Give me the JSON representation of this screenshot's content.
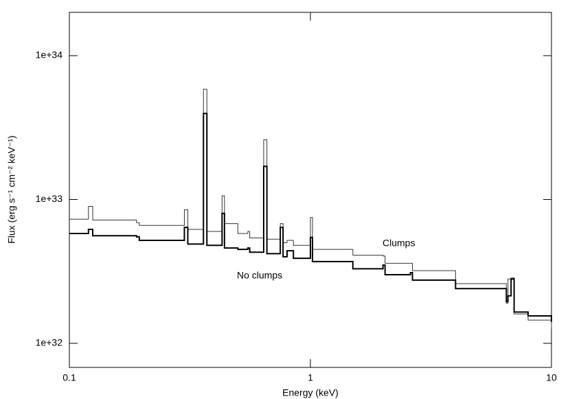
{
  "chart_data": {
    "type": "step",
    "x_label": "Energy (keV)",
    "y_label": "Flux (erg s⁻¹ cm⁻² keV⁻¹)",
    "x_log": true,
    "y_log": true,
    "xlim": [
      0.1,
      10
    ],
    "xticks": [
      0.1,
      1,
      10
    ],
    "ylim": [
      6.8e+31,
      2e+34
    ],
    "yticks": [
      {
        "value": 1e+32,
        "label": "1e+32"
      },
      {
        "value": 1e+33,
        "label": "1e+33"
      },
      {
        "value": 1e+34,
        "label": "1e+34"
      }
    ],
    "x": [
      0.1,
      0.12,
      0.125,
      0.19,
      0.195,
      0.3,
      0.31,
      0.36,
      0.372,
      0.43,
      0.44,
      0.5,
      0.55,
      0.56,
      0.64,
      0.66,
      0.75,
      0.77,
      0.8,
      0.85,
      1.0,
      1.02,
      1.5,
      2.0,
      2.04,
      2.6,
      2.65,
      4,
      6.5,
      6.6,
      6.8,
      7.0,
      8,
      10
    ],
    "series": [
      {
        "name": "Clumps",
        "color": "#333333",
        "values": [
          7.3e+32,
          8.96e+32,
          7.2e+32,
          6.9e+32,
          6.6e+32,
          8.5e+32,
          6.2e+32,
          5.84e+33,
          6e+32,
          1.06e+33,
          6.8e+32,
          5.8e+32,
          6e+32,
          5.4e+32,
          2.6e+33,
          5.3e+32,
          6.8e+32,
          5e+32,
          5.2e+32,
          4.8e+32,
          7.5e+32,
          4.5e+32,
          4.1e+32,
          4.05e+32,
          3.6e+32,
          3.6e+32,
          3.2e+32,
          2.6e+32,
          1.9e+32,
          2.8e+32,
          2.85e+32,
          1.6e+32,
          1.45e+32,
          1.26e+32
        ]
      },
      {
        "name": "No clumps",
        "color": "#000000",
        "values": [
          5.8e+32,
          6.2e+32,
          5.6e+32,
          5.5e+32,
          5.2e+32,
          6.4e+32,
          4.9e+32,
          3.96e+33,
          4.8e+32,
          8e+32,
          4.6e+32,
          4.5e+32,
          4.6e+32,
          4.3e+32,
          1.7e+33,
          4.2e+32,
          6.4e+32,
          4e+32,
          4.4e+32,
          3.9e+32,
          5.45e+32,
          3.7e+32,
          3.3e+32,
          3.5e+32,
          3e+32,
          3.1e+32,
          2.75e+32,
          2.4e+32,
          1.95e+32,
          2.14e+32,
          2.8e+32,
          1.65e+32,
          1.55e+32,
          1.41e+32
        ]
      }
    ]
  }
}
